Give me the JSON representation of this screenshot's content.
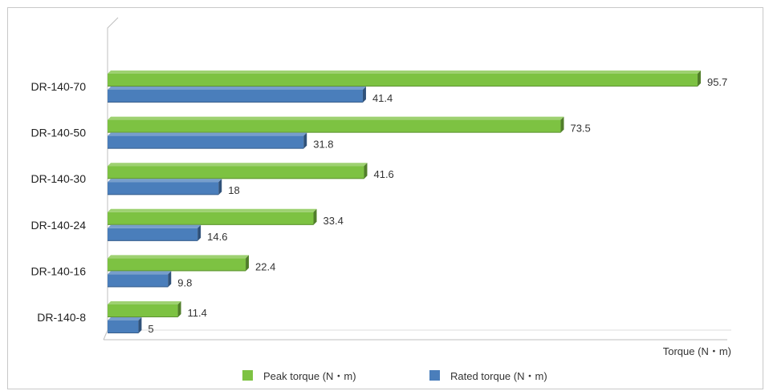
{
  "chart_data": {
    "type": "bar",
    "orientation": "horizontal",
    "style": "3d",
    "title": "",
    "xlabel": "Torque (N・m)",
    "ylabel": "",
    "xlim": [
      0,
      100
    ],
    "grid": false,
    "legend_position": "bottom",
    "categories": [
      "DR-140-70",
      "DR-140-50",
      "DR-140-30",
      "DR-140-24",
      "DR-140-16",
      "DR-140-8"
    ],
    "series": [
      {
        "name": "Peak torque (N・m)",
        "color": "#7dc242",
        "values": [
          95.7,
          73.5,
          41.6,
          33.4,
          22.4,
          11.4
        ],
        "value_labels": [
          "95.7",
          "73.5",
          "41.6",
          "33.4",
          "22.4",
          "11.4"
        ]
      },
      {
        "name": "Rated torque (N・m)",
        "color": "#4a7ebb",
        "values": [
          41.4,
          31.8,
          18,
          14.6,
          9.8,
          5
        ],
        "value_labels": [
          "41.4",
          "31.8",
          "18",
          "14.6",
          "9.8",
          "5"
        ]
      }
    ]
  }
}
